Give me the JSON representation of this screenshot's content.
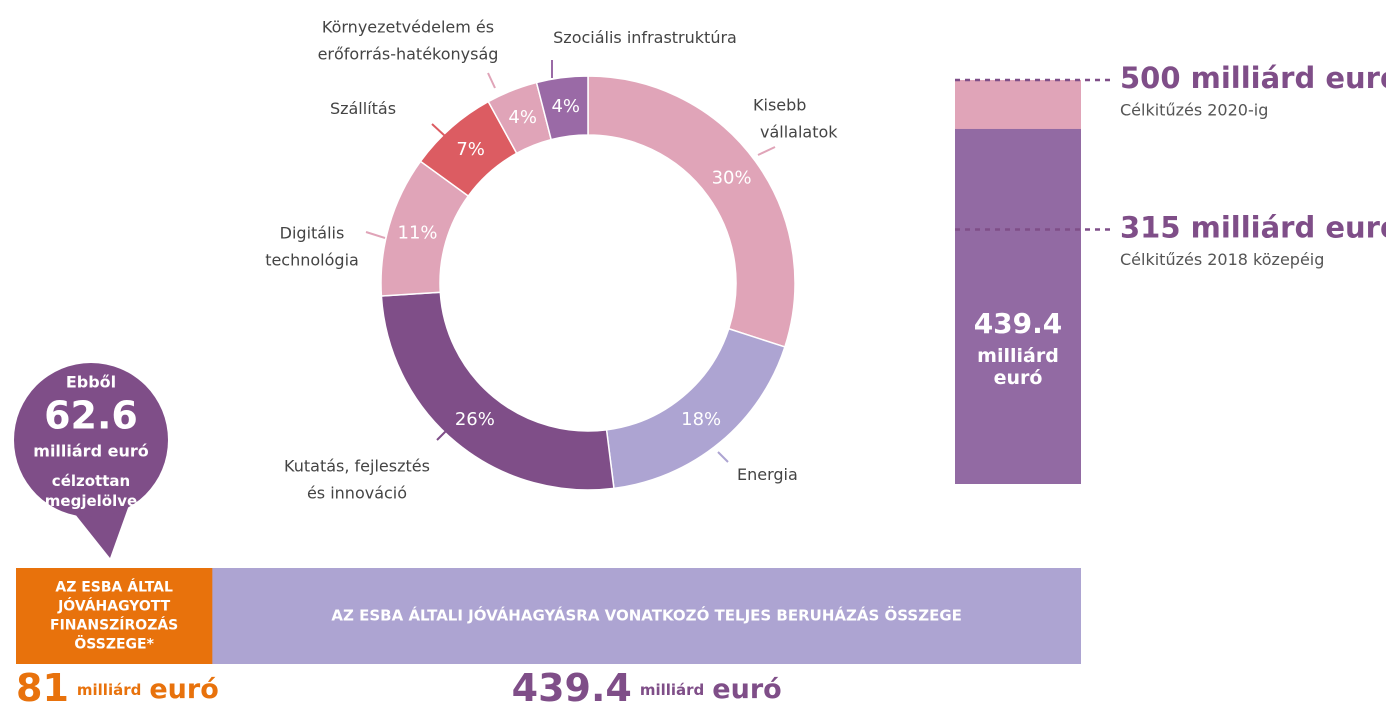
{
  "chart_data": [
    {
      "type": "pie",
      "donut": true,
      "categories": [
        "Kisebb\nvállalatok",
        "Energia",
        "Kutatás, fejlesztés\nés innováció",
        "Digitális\ntechnológia",
        "Szállítás",
        "Környezetvédelem és\nerőforrás-hatékonyság",
        "Szociális infrastruktúra"
      ],
      "values": [
        30,
        18,
        26,
        11,
        7,
        4,
        4
      ],
      "value_labels": [
        "30%",
        "18%",
        "26%",
        "11%",
        "7%",
        "4%",
        "4%"
      ],
      "colors": [
        "#e0a4b8",
        "#ada4d2",
        "#7f4e88",
        "#e0a4b8",
        "#dc5c62",
        "#e0a4b8",
        "#9a6aa6"
      ]
    },
    {
      "type": "target-bar",
      "ylim": [
        0,
        500
      ],
      "value": 439.4,
      "value_label": "439.4",
      "unit": "milliárd euró",
      "color": "#926aa3",
      "target_color": "#e0a4b8",
      "targets": [
        {
          "value": 500,
          "label": "500 milliárd euró",
          "note": "Célkitűzés 2020-ig"
        },
        {
          "value": 315,
          "label": "315 milliárd euró",
          "note": "Célkitűzés 2018 közepéig"
        }
      ]
    },
    {
      "type": "overlay-bar",
      "categories": [
        "AZ ESBA ÁLTAL\nJÓVÁHAGYOTT\nFINANSZÍROZÁS\nÖSSZEGE*",
        "AZ ESBA ÁLTALI JÓVÁHAGYÁSRA VONATKOZÓ TELJES BERUHÁZÁS ÖSSZEGE"
      ],
      "values": [
        81,
        439.4
      ],
      "value_labels": [
        "81",
        "439.4"
      ],
      "unit_parts": [
        "milliárd",
        "euró"
      ],
      "colors": [
        "#e8720c",
        "#ada4d2"
      ]
    }
  ],
  "callout": {
    "intro": "Ebből",
    "value": 62.6,
    "unit": "milliárd euró",
    "note": "célzottan\nmegjelölve"
  }
}
